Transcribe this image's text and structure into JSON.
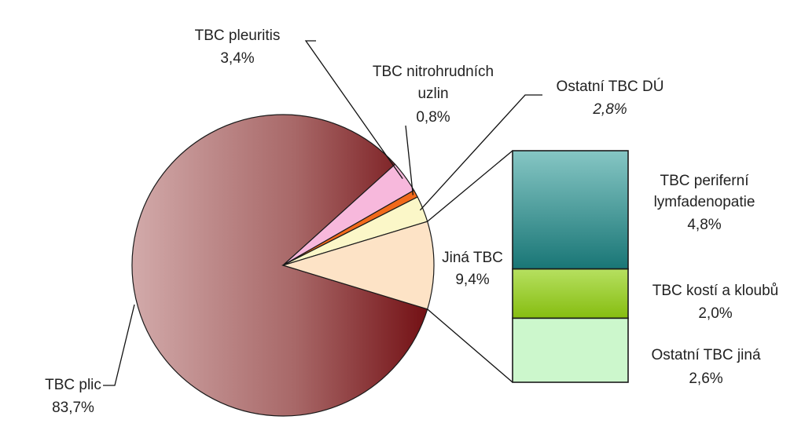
{
  "chart_data": {
    "type": "pie",
    "title": "",
    "slices": [
      {
        "name": "TBC plic",
        "value": 83.7,
        "label": "83,7%",
        "color": "#7a1f22"
      },
      {
        "name": "TBC pleuritis",
        "value": 3.4,
        "label": "3,4%",
        "color": "#f7b8dc"
      },
      {
        "name": "TBC nitrohrudních uzlin",
        "value": 0.8,
        "label": "0,8%",
        "color": "#f26a1b"
      },
      {
        "name": "Ostatní TBC DÚ",
        "value": 2.8,
        "label": "2,8%",
        "color": "#fbf7c8"
      },
      {
        "name": "Jiná TBC",
        "value": 9.4,
        "label": "9,4%",
        "color": "#fde3c6"
      }
    ],
    "breakdown": {
      "of": "Jiná TBC",
      "segments": [
        {
          "name": "TBC periferní lymfadenopatie",
          "value": 4.8,
          "label": "4,8%",
          "color": "#2f8f8f"
        },
        {
          "name": "TBC kostí a kloubů",
          "value": 2.0,
          "label": "2,0%",
          "color": "#9acd1e"
        },
        {
          "name": "Ostatní TBC jiná",
          "value": 2.6,
          "label": "2,6%",
          "color": "#ccf7cc"
        }
      ]
    }
  }
}
